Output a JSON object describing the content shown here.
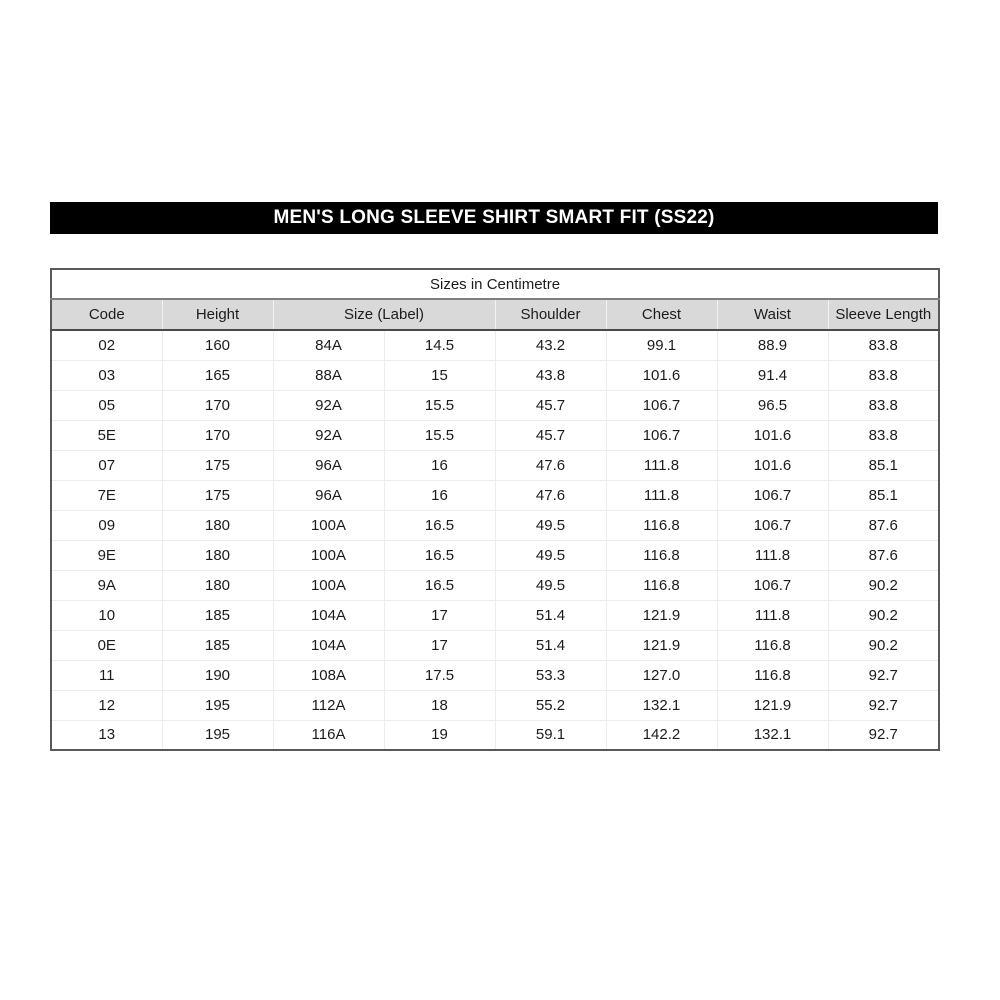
{
  "title_bar": {
    "text": "MEN'S LONG SLEEVE SHIRT SMART FIT (SS22)",
    "bg_color": "#000000",
    "text_color": "#ffffff"
  },
  "table": {
    "caption": "Sizes in Centimetre",
    "columns": [
      "Code",
      "Height",
      "Size (Label)",
      "Shoulder",
      "Chest",
      "Waist",
      "Sleeve Length"
    ],
    "size_label_colspan": 2,
    "rows": [
      [
        "02",
        "160",
        "84A",
        "14.5",
        "43.2",
        "99.1",
        "88.9",
        "83.8"
      ],
      [
        "03",
        "165",
        "88A",
        "15",
        "43.8",
        "101.6",
        "91.4",
        "83.8"
      ],
      [
        "05",
        "170",
        "92A",
        "15.5",
        "45.7",
        "106.7",
        "96.5",
        "83.8"
      ],
      [
        "5E",
        "170",
        "92A",
        "15.5",
        "45.7",
        "106.7",
        "101.6",
        "83.8"
      ],
      [
        "07",
        "175",
        "96A",
        "16",
        "47.6",
        "111.8",
        "101.6",
        "85.1"
      ],
      [
        "7E",
        "175",
        "96A",
        "16",
        "47.6",
        "111.8",
        "106.7",
        "85.1"
      ],
      [
        "09",
        "180",
        "100A",
        "16.5",
        "49.5",
        "116.8",
        "106.7",
        "87.6"
      ],
      [
        "9E",
        "180",
        "100A",
        "16.5",
        "49.5",
        "116.8",
        "111.8",
        "87.6"
      ],
      [
        "9A",
        "180",
        "100A",
        "16.5",
        "49.5",
        "116.8",
        "106.7",
        "90.2"
      ],
      [
        "10",
        "185",
        "104A",
        "17",
        "51.4",
        "121.9",
        "111.8",
        "90.2"
      ],
      [
        "0E",
        "185",
        "104A",
        "17",
        "51.4",
        "121.9",
        "116.8",
        "90.2"
      ],
      [
        "11",
        "190",
        "108A",
        "17.5",
        "53.3",
        "127.0",
        "116.8",
        "92.7"
      ],
      [
        "12",
        "195",
        "112A",
        "18",
        "55.2",
        "132.1",
        "121.9",
        "92.7"
      ],
      [
        "13",
        "195",
        "116A",
        "19",
        "59.1",
        "142.2",
        "132.1",
        "92.7"
      ]
    ],
    "colors": {
      "header_bg": "#d9d9d9",
      "outer_border": "#595959",
      "grid_line": "#ececec",
      "text": "#1c1c1c"
    }
  }
}
